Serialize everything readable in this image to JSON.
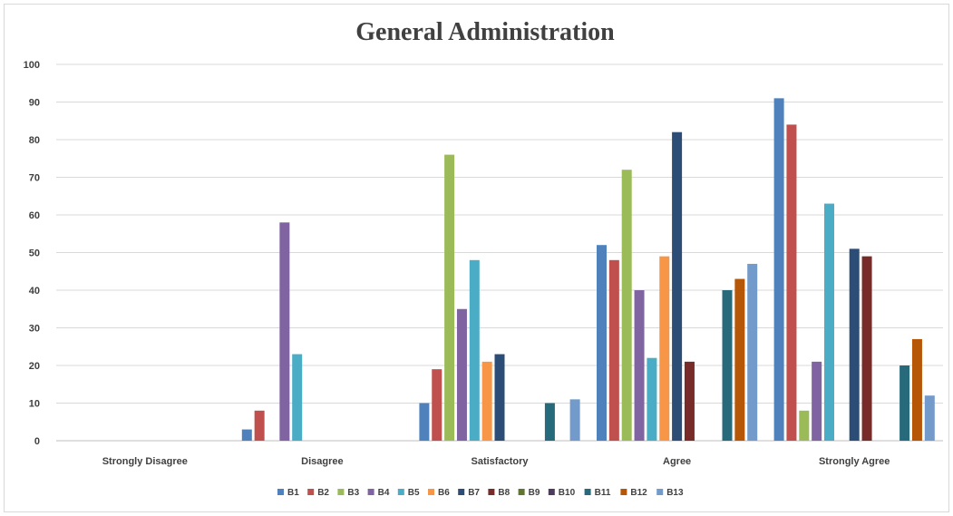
{
  "chart_data": {
    "type": "bar",
    "title": "General Administration",
    "xlabel": "",
    "ylabel": "",
    "ylim": [
      0,
      100
    ],
    "yticks": [
      0,
      10,
      20,
      30,
      40,
      50,
      60,
      70,
      80,
      90,
      100
    ],
    "grid": true,
    "legend_position": "bottom",
    "categories": [
      "Strongly Disagree",
      "Disagree",
      "Satisfactory",
      "Agree",
      "Strongly Agree"
    ],
    "series": [
      {
        "name": "B1",
        "color": "#4f81bd",
        "values": [
          0,
          3,
          10,
          52,
          91
        ]
      },
      {
        "name": "B2",
        "color": "#c0504d",
        "values": [
          0,
          8,
          19,
          48,
          84
        ]
      },
      {
        "name": "B3",
        "color": "#9bbb59",
        "values": [
          0,
          0,
          76,
          72,
          8
        ]
      },
      {
        "name": "B4",
        "color": "#8064a2",
        "values": [
          0,
          58,
          35,
          40,
          21
        ]
      },
      {
        "name": "B5",
        "color": "#4bacc6",
        "values": [
          0,
          23,
          48,
          22,
          63
        ]
      },
      {
        "name": "B6",
        "color": "#f79646",
        "values": [
          0,
          0,
          21,
          49,
          0
        ]
      },
      {
        "name": "B7",
        "color": "#2c4d75",
        "values": [
          0,
          0,
          23,
          82,
          51
        ]
      },
      {
        "name": "B8",
        "color": "#772c2a",
        "values": [
          0,
          0,
          0,
          21,
          49
        ]
      },
      {
        "name": "B9",
        "color": "#5f7530",
        "values": [
          0,
          0,
          0,
          0,
          0
        ]
      },
      {
        "name": "B10",
        "color": "#4d3b62",
        "values": [
          0,
          0,
          0,
          0,
          0
        ]
      },
      {
        "name": "B11",
        "color": "#276a7c",
        "values": [
          0,
          0,
          10,
          40,
          20
        ]
      },
      {
        "name": "B12",
        "color": "#b65708",
        "values": [
          0,
          0,
          0,
          43,
          27
        ]
      },
      {
        "name": "B13",
        "color": "#729aca",
        "values": [
          0,
          0,
          11,
          47,
          12
        ]
      }
    ]
  }
}
